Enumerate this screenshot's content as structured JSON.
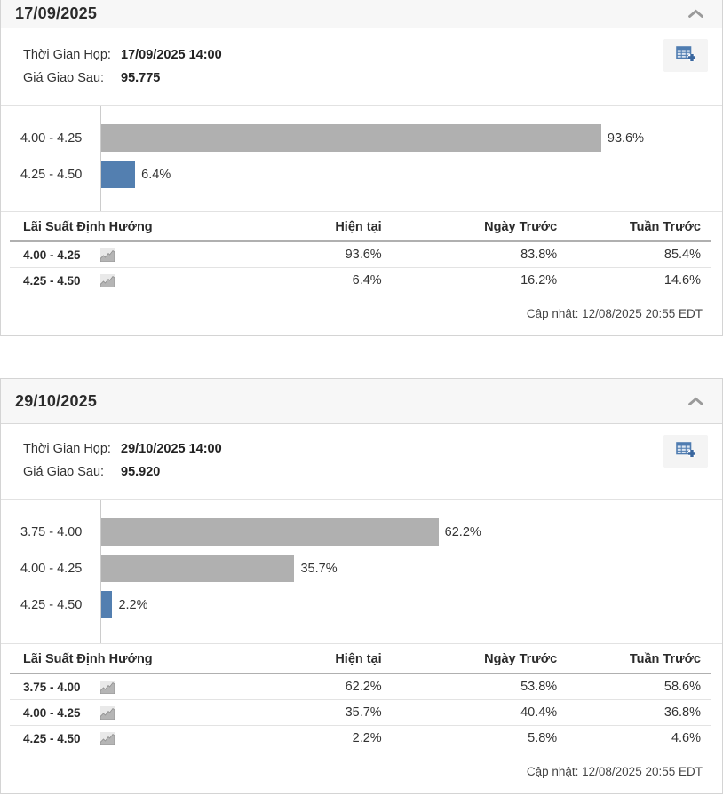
{
  "labels": {
    "meeting_time": "Thời Gian Họp:",
    "futures_price": "Giá Giao Sau:",
    "table_headers": [
      "Lãi Suất Định Hướng",
      "Hiện tại",
      "Ngày Trước",
      "Tuần Trước"
    ]
  },
  "colors": {
    "bar_gray": "#b0b0b0",
    "bar_blue": "#537fb0",
    "icon_blue": "#4f7cb0"
  },
  "panels": [
    {
      "title": "17/09/2025",
      "meeting_time": "17/09/2025 14:00",
      "futures_price": "95.775",
      "update_text": "Cập nhật: 12/08/2025 20:55 EDT",
      "chart_data": {
        "type": "bar",
        "orientation": "horizontal",
        "categories": [
          "4.00 - 4.25",
          "4.25 - 4.50"
        ],
        "values": [
          93.6,
          6.4
        ],
        "value_labels": [
          "93.6%",
          "6.4%"
        ],
        "bar_colors": [
          "#b0b0b0",
          "#537fb0"
        ],
        "xlim": [
          0,
          100
        ],
        "grid": false,
        "legend": false
      },
      "table": {
        "rows": [
          {
            "rate": "4.00 - 4.25",
            "current": "93.6%",
            "day_before": "83.8%",
            "week_before": "85.4%"
          },
          {
            "rate": "4.25 - 4.50",
            "current": "6.4%",
            "day_before": "16.2%",
            "week_before": "14.6%"
          }
        ]
      }
    },
    {
      "title": "29/10/2025",
      "meeting_time": "29/10/2025 14:00",
      "futures_price": "95.920",
      "update_text": "Cập nhật: 12/08/2025 20:55 EDT",
      "chart_data": {
        "type": "bar",
        "orientation": "horizontal",
        "categories": [
          "3.75 - 4.00",
          "4.00 - 4.25",
          "4.25 - 4.50"
        ],
        "values": [
          62.2,
          35.7,
          2.2
        ],
        "value_labels": [
          "62.2%",
          "35.7%",
          "2.2%"
        ],
        "bar_colors": [
          "#b0b0b0",
          "#b0b0b0",
          "#537fb0"
        ],
        "xlim": [
          0,
          100
        ],
        "grid": false,
        "legend": false
      },
      "table": {
        "rows": [
          {
            "rate": "3.75 - 4.00",
            "current": "62.2%",
            "day_before": "53.8%",
            "week_before": "58.6%"
          },
          {
            "rate": "4.00 - 4.25",
            "current": "35.7%",
            "day_before": "40.4%",
            "week_before": "36.8%"
          },
          {
            "rate": "4.25 - 4.50",
            "current": "2.2%",
            "day_before": "5.8%",
            "week_before": "4.6%"
          }
        ]
      }
    }
  ]
}
